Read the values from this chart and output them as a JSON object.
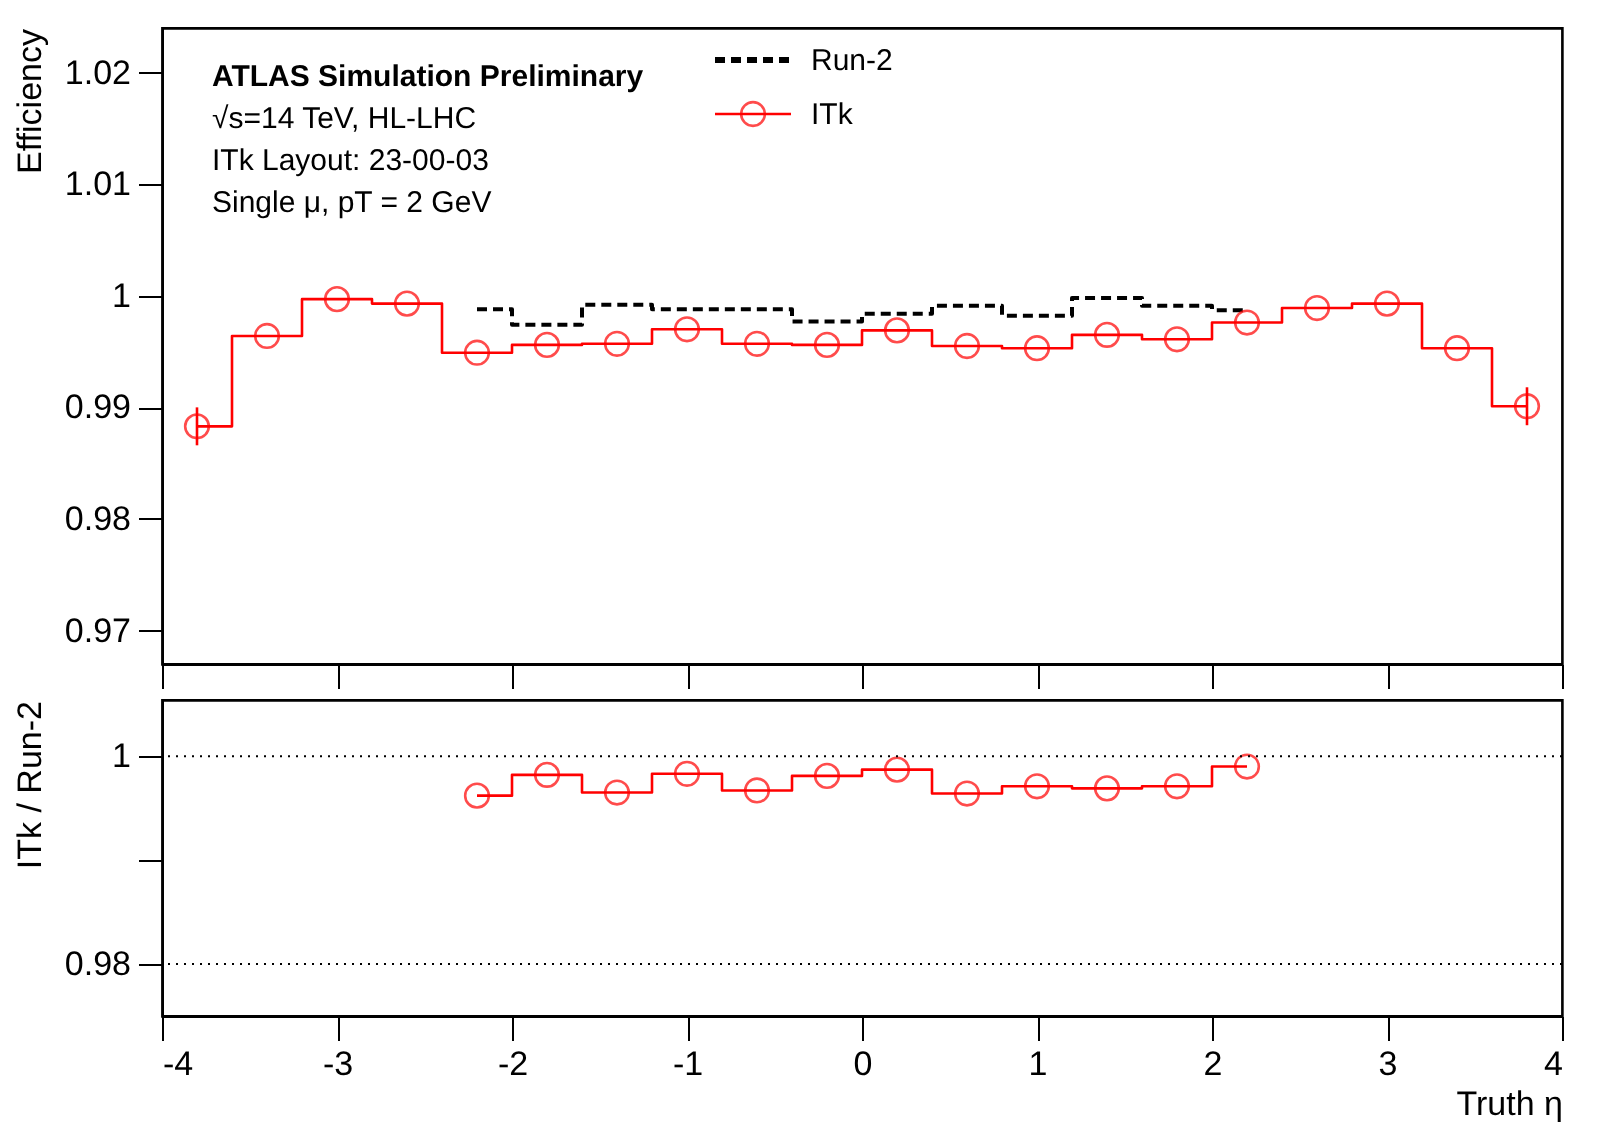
{
  "chart_data": [
    {
      "type": "step",
      "ylabel": "Efficiency",
      "xlim": [
        -4,
        4
      ],
      "xticks": [
        -4,
        -3,
        -2,
        -1,
        0,
        1,
        2,
        3,
        4
      ],
      "ylim": [
        0.967,
        1.024
      ],
      "yticks": [
        0.97,
        0.98,
        0.99,
        1,
        1.01,
        1.02
      ],
      "tick_labels": "y",
      "grid": false,
      "legend": "top",
      "annotations": [
        "ATLAS Simulation Preliminary",
        "√s=14 TeV, HL-LHC",
        "ITk Layout: 23-00-03",
        "Single μ, pT = 2 GeV"
      ],
      "series": [
        {
          "name": "Run-2",
          "color": "#000000",
          "line_style": "dashed",
          "marker": "none",
          "x": [
            -2.2,
            -1.8,
            -1.4,
            -1.0,
            -0.6,
            -0.2,
            0.2,
            0.6,
            1.0,
            1.4,
            1.8,
            2.2
          ],
          "values": [
            0.9988,
            0.9974,
            0.9992,
            0.9988,
            0.9988,
            0.9977,
            0.9984,
            0.9991,
            0.9982,
            0.9998,
            0.9991,
            0.9987
          ]
        },
        {
          "name": "ITk",
          "color": "#ff0000",
          "line_style": "solid",
          "marker": "circle",
          "x": [
            -3.8,
            -3.4,
            -3.0,
            -2.6,
            -2.2,
            -1.8,
            -1.4,
            -1.0,
            -0.6,
            -0.2,
            0.2,
            0.6,
            1.0,
            1.4,
            1.8,
            2.2,
            2.6,
            3.0,
            3.4,
            3.8
          ],
          "values": [
            0.9883,
            0.9964,
            0.9997,
            0.9993,
            0.9949,
            0.9956,
            0.9957,
            0.997,
            0.9957,
            0.9956,
            0.9969,
            0.9955,
            0.9953,
            0.9965,
            0.9961,
            0.9976,
            0.9989,
            0.9993,
            0.9953,
            0.9901
          ],
          "errors": [
            0.0017,
            null,
            null,
            null,
            null,
            null,
            null,
            null,
            null,
            null,
            null,
            null,
            null,
            null,
            null,
            null,
            null,
            null,
            null,
            0.0017
          ]
        }
      ]
    },
    {
      "type": "step",
      "ylabel": "ITk / Run-2",
      "xlabel": "Truth η",
      "xlim": [
        -4,
        4
      ],
      "xticks": [
        -4,
        -3,
        -2,
        -1,
        0,
        1,
        2,
        3,
        4
      ],
      "ylim": [
        0.975,
        1.0054
      ],
      "yticks": [
        0.98,
        {
          "value": 0.99,
          "label": null
        },
        1
      ],
      "grid": false,
      "ref_lines": [
        {
          "axis": "y",
          "value": 1,
          "color": "#000000",
          "line_style": "dotted"
        },
        {
          "axis": "y",
          "value": 0.98,
          "color": "#000000",
          "line_style": "dotted"
        }
      ],
      "series": [
        {
          "color": "#ff0000",
          "line_style": "solid",
          "marker": "circle",
          "x": [
            -2.2,
            -1.8,
            -1.4,
            -1.0,
            -0.6,
            -0.2,
            0.2,
            0.6,
            1.0,
            1.4,
            1.8,
            2.2
          ],
          "values": [
            0.9962,
            0.9982,
            0.9965,
            0.9983,
            0.9967,
            0.9981,
            0.9987,
            0.9964,
            0.9971,
            0.9969,
            0.9971,
            0.999
          ]
        }
      ]
    }
  ]
}
